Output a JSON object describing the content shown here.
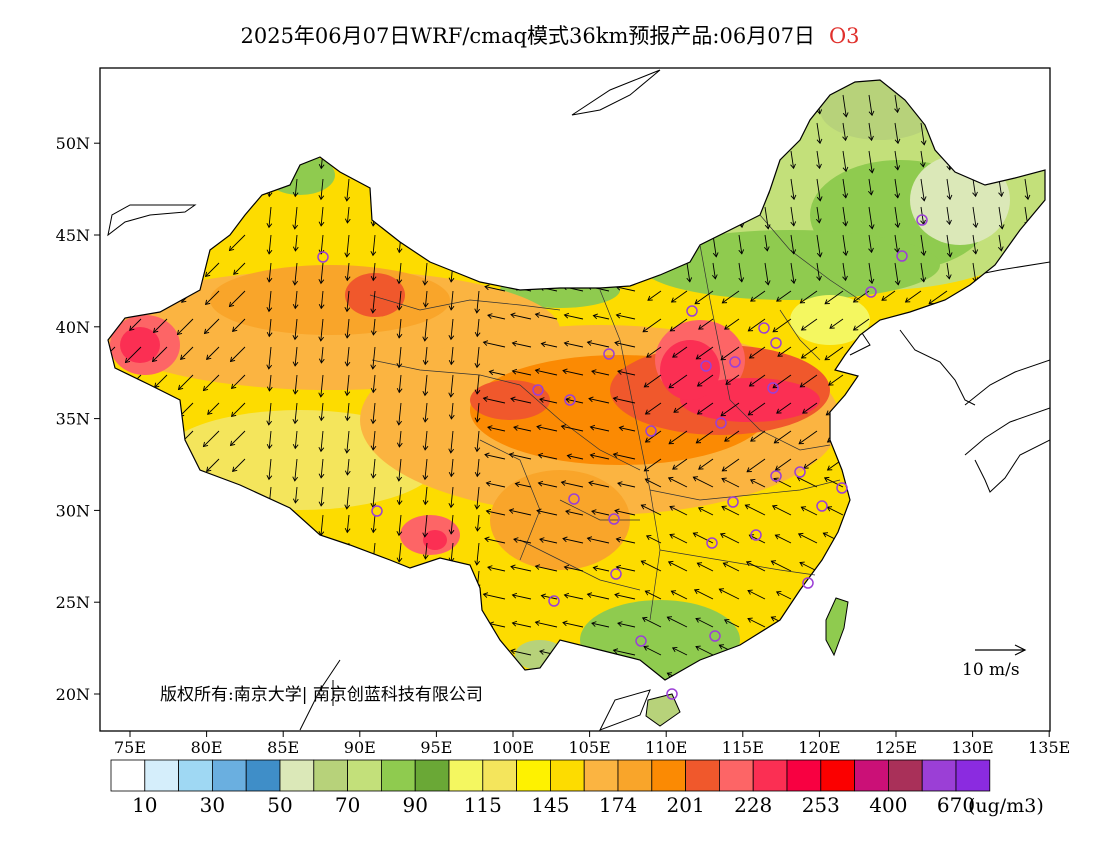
{
  "title": {
    "main": "2025年06月07日WRF/cmaq模式36km预报产品:06月07日",
    "pollutant": "O3"
  },
  "map": {
    "lon_range": [
      73,
      135
    ],
    "lat_range": [
      18,
      54
    ],
    "lon_ticks": [
      "75E",
      "80E",
      "85E",
      "90E",
      "95E",
      "100E",
      "105E",
      "110E",
      "115E",
      "120E",
      "125E",
      "130E",
      "135E"
    ],
    "lat_ticks": [
      "20N",
      "25N",
      "30N",
      "35N",
      "40N",
      "45N",
      "50N"
    ],
    "copyright": "版权所有:南京大学| 南京创蓝科技有限公司",
    "wind_reference": "10 m/s",
    "station_marker_color": "#9b3fd6"
  },
  "colorbar": {
    "colors": [
      "#ffffff",
      "#d5eefb",
      "#9fd8f3",
      "#6aafe0",
      "#3f8ec8",
      "#dbe8b8",
      "#b7d27a",
      "#c3e07a",
      "#8fcb4f",
      "#6aa836",
      "#f4f760",
      "#f4e55c",
      "#fef200",
      "#fddc00",
      "#fbb441",
      "#f9a52a",
      "#fb8a03",
      "#f0582c",
      "#fd6566",
      "#fb2f53",
      "#f80041",
      "#fb0000",
      "#cb1077",
      "#a93059",
      "#9b3fd6",
      "#8b2be0"
    ],
    "labels": [
      "10",
      "30",
      "50",
      "70",
      "90",
      "115",
      "145",
      "174",
      "201",
      "228",
      "253",
      "400",
      "670"
    ],
    "unit": "(ug/m3)"
  }
}
